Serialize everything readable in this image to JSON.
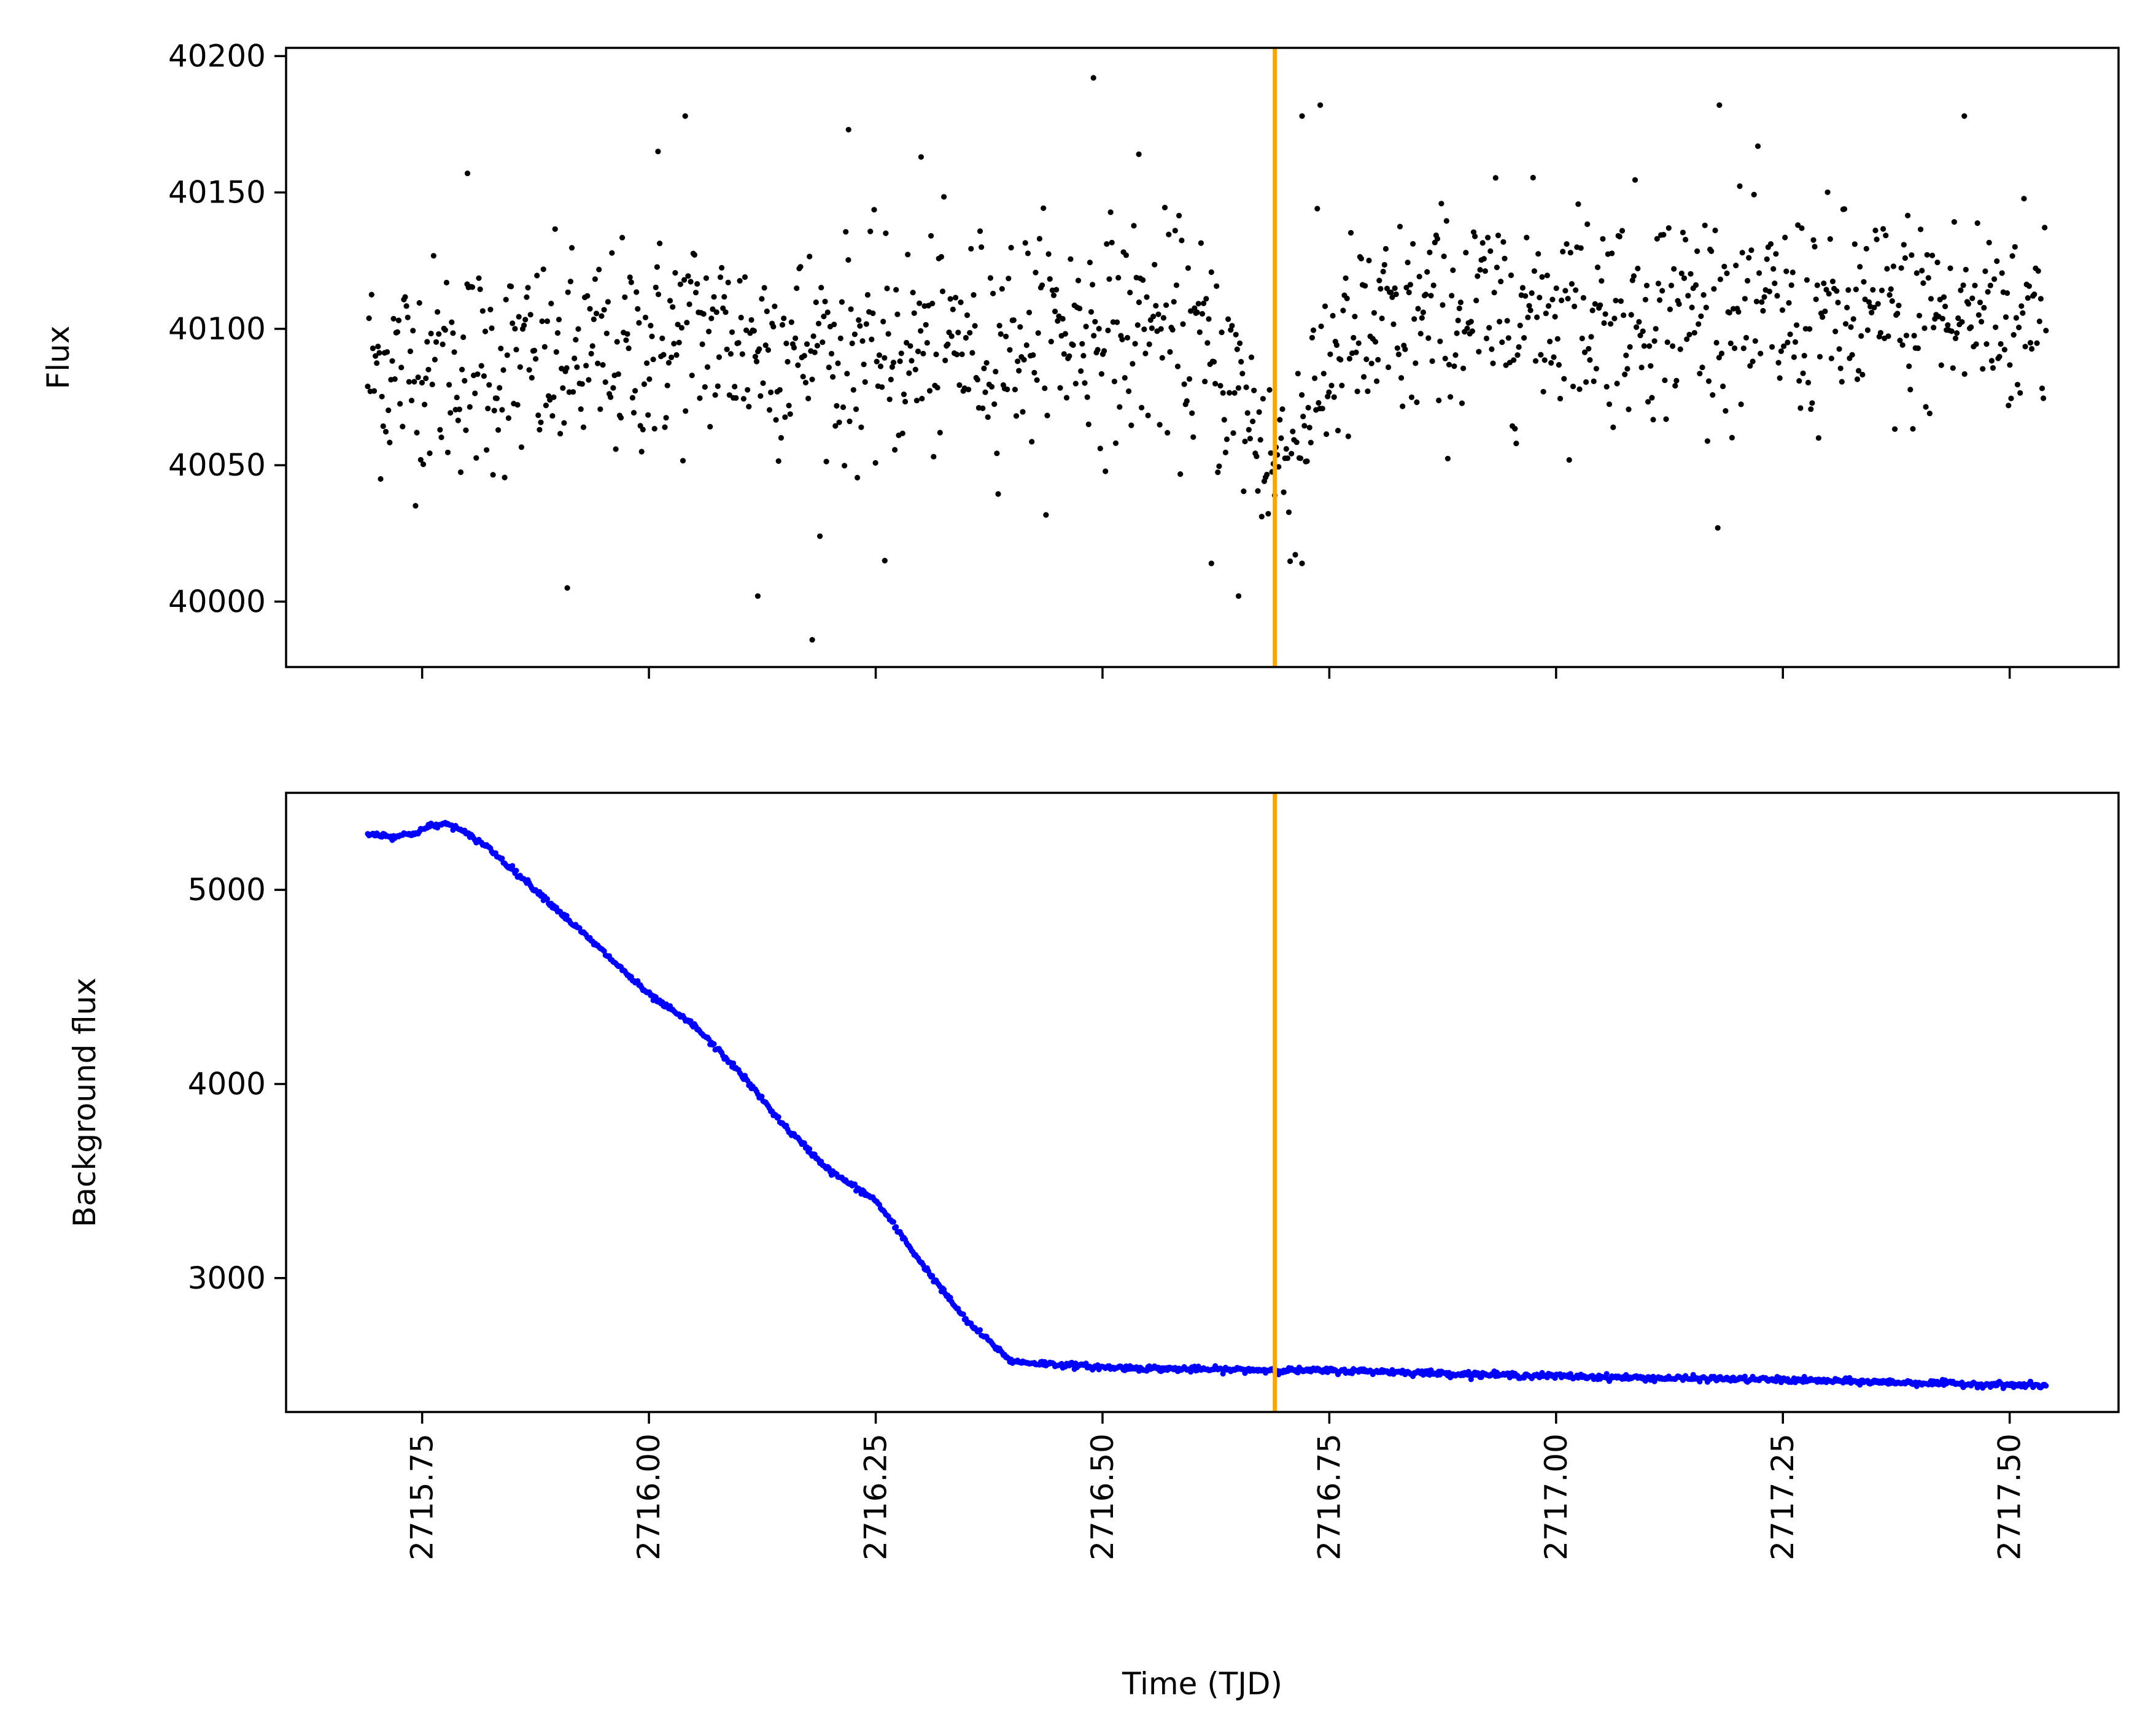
{
  "chart_data": [
    {
      "type": "scatter",
      "panel": "top",
      "title": "",
      "xlabel": "",
      "ylabel": "Flux",
      "xlim": [
        2715.6,
        2717.62
      ],
      "ylim": [
        39976,
        40203
      ],
      "yticks": [
        40000,
        40050,
        40100,
        40150,
        40200
      ],
      "ytick_labels": [
        "40000",
        "40050",
        "40100",
        "40150",
        "40200"
      ],
      "xticks": [
        2715.75,
        2716.0,
        2716.25,
        2716.5,
        2716.75,
        2717.0,
        2717.25,
        2717.5
      ],
      "show_xtick_labels": false,
      "grid": false,
      "marker_color": "#000000",
      "vline": {
        "x": 2716.69,
        "color": "#FFA500"
      },
      "data_range": [
        2715.69,
        2717.54
      ],
      "trend": [
        [
          2715.69,
          40085
        ],
        [
          2715.75,
          40087
        ],
        [
          2715.85,
          40086
        ],
        [
          2715.95,
          40089
        ],
        [
          2716.0,
          40093
        ],
        [
          2716.05,
          40098
        ],
        [
          2716.1,
          40096
        ],
        [
          2716.2,
          40092
        ],
        [
          2716.25,
          40090
        ],
        [
          2716.35,
          40095
        ],
        [
          2716.45,
          40099
        ],
        [
          2716.55,
          40100
        ],
        [
          2716.6,
          40096
        ],
        [
          2716.64,
          40082
        ],
        [
          2716.67,
          40062
        ],
        [
          2716.69,
          40050
        ],
        [
          2716.71,
          40056
        ],
        [
          2716.73,
          40076
        ],
        [
          2716.76,
          40092
        ],
        [
          2716.85,
          40103
        ],
        [
          2716.95,
          40108
        ],
        [
          2717.05,
          40108
        ],
        [
          2717.15,
          40107
        ],
        [
          2717.25,
          40104
        ],
        [
          2717.35,
          40104
        ],
        [
          2717.45,
          40105
        ],
        [
          2717.54,
          40106
        ]
      ],
      "scatter_sigma": 24,
      "outliers": [
        [
          2715.8,
          40157
        ],
        [
          2715.91,
          40005
        ],
        [
          2716.01,
          40165
        ],
        [
          2716.04,
          40178
        ],
        [
          2716.12,
          40002
        ],
        [
          2716.18,
          39986
        ],
        [
          2716.22,
          40173
        ],
        [
          2716.26,
          40015
        ],
        [
          2716.49,
          40192
        ],
        [
          2716.62,
          40014
        ],
        [
          2716.65,
          40002
        ],
        [
          2716.72,
          40014
        ],
        [
          2716.72,
          40178
        ],
        [
          2716.74,
          40182
        ],
        [
          2717.18,
          40182
        ],
        [
          2717.45,
          40178
        ],
        [
          2716.3,
          40163
        ],
        [
          2716.54,
          40164
        ]
      ]
    },
    {
      "type": "line",
      "panel": "bottom",
      "title": "",
      "xlabel": "Time (TJD)",
      "ylabel": "Background flux",
      "xlim": [
        2715.6,
        2717.62
      ],
      "ylim": [
        2310,
        5500
      ],
      "yticks": [
        3000,
        4000,
        5000
      ],
      "ytick_labels": [
        "3000",
        "4000",
        "5000"
      ],
      "xticks": [
        2715.75,
        2716.0,
        2716.25,
        2716.5,
        2716.75,
        2717.0,
        2717.25,
        2717.5
      ],
      "xtick_labels": [
        "2715.75",
        "2716.00",
        "2716.25",
        "2716.50",
        "2716.75",
        "2717.00",
        "2717.25",
        "2717.50"
      ],
      "grid": false,
      "marker_color": "#0000FF",
      "vline": {
        "x": 2716.69,
        "color": "#FFA500"
      },
      "x": [
        2715.69,
        2715.72,
        2715.74,
        2715.76,
        2715.78,
        2715.82,
        2715.88,
        2715.95,
        2716.0,
        2716.05,
        2716.1,
        2716.15,
        2716.2,
        2716.25,
        2716.3,
        2716.35,
        2716.4,
        2716.5,
        2716.6,
        2716.7,
        2716.8,
        2716.9,
        2717.0,
        2717.1,
        2717.2,
        2717.3,
        2717.4,
        2717.54
      ],
      "values": [
        5290,
        5275,
        5290,
        5330,
        5340,
        5230,
        4980,
        4680,
        4460,
        4300,
        4060,
        3780,
        3550,
        3400,
        3080,
        2780,
        2570,
        2540,
        2530,
        2525,
        2520,
        2505,
        2495,
        2485,
        2480,
        2470,
        2460,
        2445
      ]
    }
  ]
}
